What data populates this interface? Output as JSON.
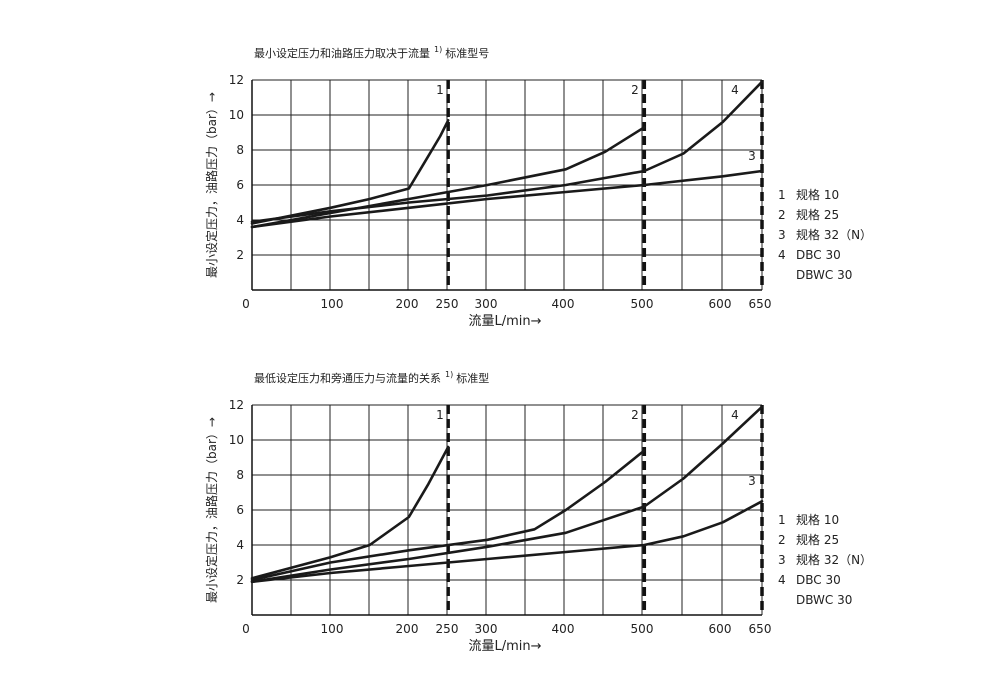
{
  "charts": [
    {
      "title": "最小设定压力和油路压力取决于流量",
      "title_note": "1)",
      "title_suffix": "标准型号",
      "ylabel": "最小设定压力，油路压力（bar）→",
      "xlabel": "流量L/min→",
      "x_ticks": [
        "0",
        "100",
        "200",
        "250",
        "300",
        "400",
        "500",
        "600",
        "650"
      ],
      "y_ticks": [
        "2",
        "4",
        "6",
        "8",
        "10",
        "12"
      ],
      "legend": [
        {
          "num": "1",
          "text": "规格  10"
        },
        {
          "num": "2",
          "text": "规格  25"
        },
        {
          "num": "3",
          "text": "规格  32（N）"
        },
        {
          "num": "4",
          "text": "DBC  30"
        },
        {
          "num": "",
          "text": "DBWC  30"
        }
      ],
      "curve_labels": [
        "1",
        "2",
        "3",
        "4"
      ]
    },
    {
      "title": "最低设定压力和旁通压力与流量的关系",
      "title_note": "1)",
      "title_suffix": "标准型",
      "ylabel": "最小设定压力，油路压力（bar）→",
      "xlabel": "流量L/min→",
      "x_ticks": [
        "0",
        "100",
        "200",
        "250",
        "300",
        "400",
        "500",
        "600",
        "650"
      ],
      "y_ticks": [
        "2",
        "4",
        "6",
        "8",
        "10",
        "12"
      ],
      "legend": [
        {
          "num": "1",
          "text": "规格  10"
        },
        {
          "num": "2",
          "text": "规格  25"
        },
        {
          "num": "3",
          "text": "规格  32（N）"
        },
        {
          "num": "4",
          "text": "DBC  30"
        },
        {
          "num": "",
          "text": "DBWC  30"
        }
      ],
      "curve_labels": [
        "1",
        "2",
        "3",
        "4"
      ]
    }
  ],
  "chart_data": [
    {
      "type": "line",
      "title": "最小设定压力和油路压力取决于流量",
      "xlabel": "流量L/min",
      "ylabel": "最小设定压力，油路压力（bar）",
      "xlim": [
        0,
        650
      ],
      "ylim": [
        0,
        12
      ],
      "x_ticks": [
        0,
        100,
        200,
        250,
        300,
        400,
        500,
        600,
        650
      ],
      "y_ticks": [
        2,
        4,
        6,
        8,
        10,
        12
      ],
      "grid": true,
      "legend_position": "right",
      "dashed_vertical_lines": [
        250,
        500,
        650
      ],
      "series": [
        {
          "name": "1",
          "x": [
            0,
            100,
            150,
            200,
            220,
            240,
            250
          ],
          "y": [
            3.8,
            4.7,
            5.2,
            5.8,
            7.3,
            8.8,
            9.7
          ]
        },
        {
          "name": "2",
          "x": [
            0,
            100,
            200,
            300,
            400,
            450,
            500
          ],
          "y": [
            3.6,
            4.4,
            5.2,
            6.0,
            6.9,
            7.9,
            9.3
          ]
        },
        {
          "name": "3",
          "x": [
            0,
            100,
            200,
            300,
            400,
            500,
            600,
            650
          ],
          "y": [
            3.6,
            4.2,
            4.7,
            5.2,
            5.6,
            6.0,
            6.5,
            6.8
          ]
        },
        {
          "name": "4",
          "x": [
            0,
            100,
            200,
            300,
            400,
            500,
            550,
            600,
            650
          ],
          "y": [
            3.9,
            4.5,
            5.0,
            5.4,
            6.0,
            6.8,
            7.8,
            9.6,
            11.9
          ]
        }
      ]
    },
    {
      "type": "line",
      "title": "最低设定压力和旁通压力与流量的关系",
      "xlabel": "流量L/min",
      "ylabel": "最小设定压力，油路压力（bar）",
      "xlim": [
        0,
        650
      ],
      "ylim": [
        0,
        12
      ],
      "x_ticks": [
        0,
        100,
        200,
        250,
        300,
        400,
        500,
        600,
        650
      ],
      "y_ticks": [
        2,
        4,
        6,
        8,
        10,
        12
      ],
      "grid": true,
      "legend_position": "right",
      "dashed_vertical_lines": [
        250,
        500,
        650
      ],
      "series": [
        {
          "name": "1",
          "x": [
            0,
            100,
            150,
            200,
            225,
            250
          ],
          "y": [
            2.1,
            3.3,
            4.0,
            5.6,
            7.5,
            9.6
          ]
        },
        {
          "name": "2",
          "x": [
            0,
            100,
            200,
            300,
            360,
            400,
            450,
            500
          ],
          "y": [
            2.0,
            3.0,
            3.7,
            4.3,
            4.9,
            6.0,
            7.6,
            9.4
          ]
        },
        {
          "name": "3",
          "x": [
            0,
            100,
            200,
            300,
            400,
            500,
            550,
            600,
            650
          ],
          "y": [
            1.9,
            2.4,
            2.8,
            3.2,
            3.6,
            4.0,
            4.5,
            5.3,
            6.5
          ]
        },
        {
          "name": "4",
          "x": [
            0,
            100,
            200,
            300,
            400,
            500,
            550,
            600,
            650
          ],
          "y": [
            1.9,
            2.6,
            3.2,
            3.9,
            4.7,
            6.2,
            7.8,
            9.8,
            11.9
          ]
        }
      ]
    }
  ]
}
